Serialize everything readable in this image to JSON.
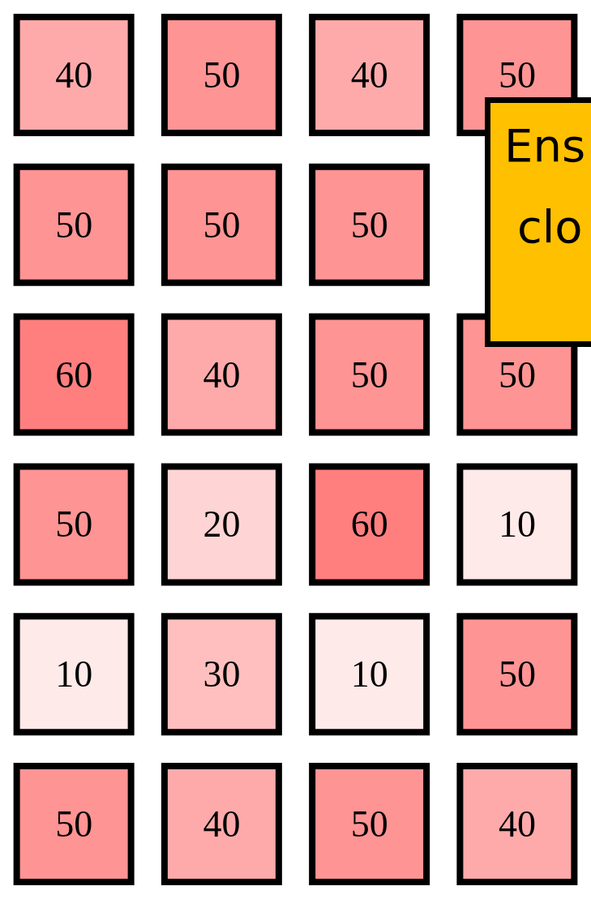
{
  "chart_data": {
    "type": "heatmap",
    "categories": [
      null,
      null,
      null,
      null
    ],
    "y_categories": [
      null,
      null,
      null,
      null,
      null,
      null
    ],
    "cells": [
      [
        40,
        50,
        40,
        50
      ],
      [
        50,
        50,
        50,
        null
      ],
      [
        60,
        40,
        50,
        50
      ],
      [
        50,
        20,
        60,
        10
      ],
      [
        10,
        30,
        10,
        50
      ],
      [
        50,
        40,
        50,
        40
      ]
    ],
    "data_labels": true,
    "annotations": [
      "Ens",
      "clo"
    ]
  }
}
